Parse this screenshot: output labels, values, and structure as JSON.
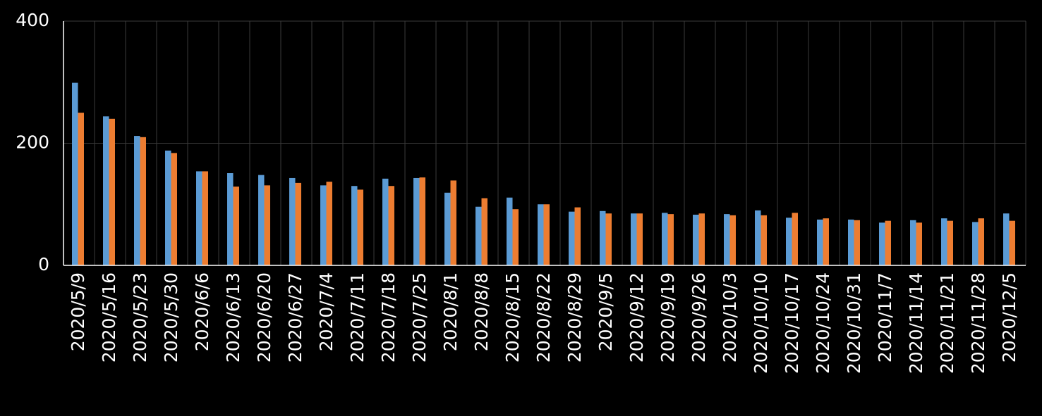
{
  "chart_data": {
    "type": "bar",
    "categories": [
      "2020/5/9",
      "2020/5/16",
      "2020/5/23",
      "2020/5/30",
      "2020/6/6",
      "2020/6/13",
      "2020/6/20",
      "2020/6/27",
      "2020/7/4",
      "2020/7/11",
      "2020/7/18",
      "2020/7/25",
      "2020/8/1",
      "2020/8/8",
      "2020/8/15",
      "2020/8/22",
      "2020/8/29",
      "2020/9/5",
      "2020/9/12",
      "2020/9/19",
      "2020/9/26",
      "2020/10/3",
      "2020/10/10",
      "2020/10/17",
      "2020/10/24",
      "2020/10/31",
      "2020/11/7",
      "2020/11/14",
      "2020/11/21",
      "2020/11/28",
      "2020/12/5"
    ],
    "series": [
      {
        "color": "#5b9bd5",
        "values": [
          299,
          244,
          212,
          188,
          154,
          151,
          148,
          143,
          131,
          130,
          142,
          143,
          119,
          96,
          111,
          100,
          88,
          89,
          85,
          86,
          83,
          84,
          90,
          78,
          75,
          75,
          70,
          74,
          77,
          71,
          85
        ]
      },
      {
        "color": "#ed7d31",
        "values": [
          250,
          240,
          210,
          184,
          154,
          129,
          131,
          135,
          137,
          124,
          130,
          144,
          139,
          110,
          92,
          100,
          95,
          85,
          85,
          84,
          85,
          82,
          82,
          86,
          77,
          74,
          73,
          70,
          73,
          77,
          73
        ]
      }
    ],
    "ylim": [
      0,
      400
    ],
    "yticks": [
      0,
      200,
      400
    ],
    "grid": true
  }
}
